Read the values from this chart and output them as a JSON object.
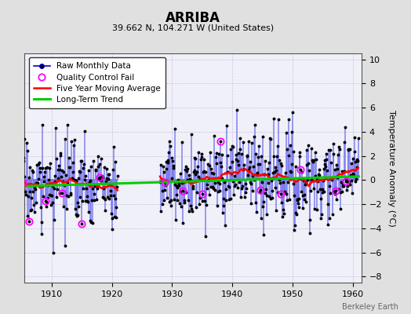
{
  "title": "ARRIBA",
  "subtitle": "39.662 N, 104.271 W (United States)",
  "ylabel": "Temperature Anomaly (°C)",
  "watermark": "Berkeley Earth",
  "xlim": [
    1905.5,
    1961.5
  ],
  "ylim": [
    -8.5,
    10.5
  ],
  "yticks": [
    -8,
    -6,
    -4,
    -2,
    0,
    2,
    4,
    6,
    8,
    10
  ],
  "xticks": [
    1910,
    1920,
    1930,
    1940,
    1950,
    1960
  ],
  "bg_color": "#e0e0e0",
  "plot_bg_color": "#f0f0f8",
  "bar_color": "#7777ee",
  "dot_color": "#000000",
  "ma_color": "#ff0000",
  "trend_color": "#00cc00",
  "qc_color": "#ff00ff",
  "seed": 17,
  "period1_start": 1905,
  "period1_end": 1921,
  "period2_start": 1928,
  "period2_end": 1961,
  "gap_start": 1921,
  "gap_end": 1928
}
